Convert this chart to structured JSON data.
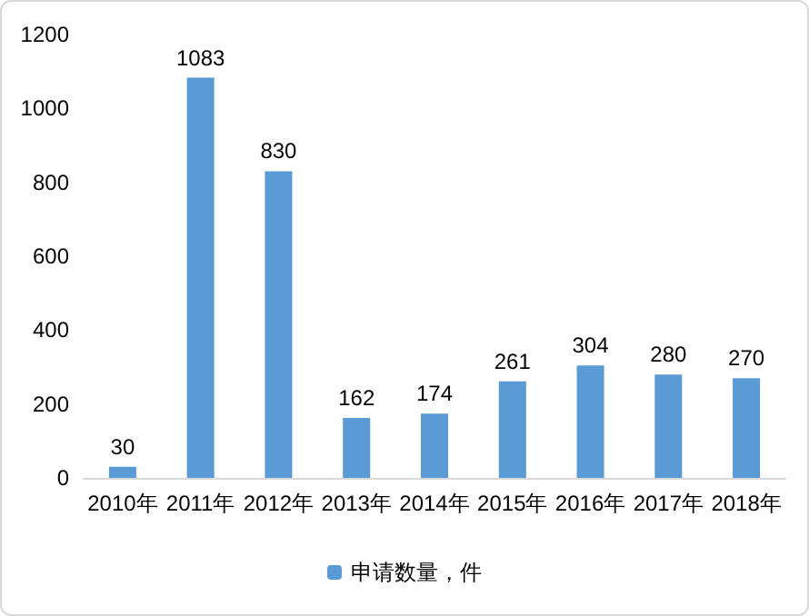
{
  "chart_data": {
    "type": "bar",
    "categories": [
      "2010年",
      "2011年",
      "2012年",
      "2013年",
      "2014年",
      "2015年",
      "2016年",
      "2017年",
      "2018年"
    ],
    "series": [
      {
        "name": "申请数量，件",
        "color": "#5b9bd5",
        "values": [
          30,
          1083,
          830,
          162,
          174,
          261,
          304,
          280,
          270
        ]
      }
    ],
    "ylim": [
      0,
      1200
    ],
    "yticks": [
      0,
      200,
      400,
      600,
      800,
      1000,
      1200
    ],
    "data_labels": true,
    "legend": "bottom",
    "grid": false
  }
}
